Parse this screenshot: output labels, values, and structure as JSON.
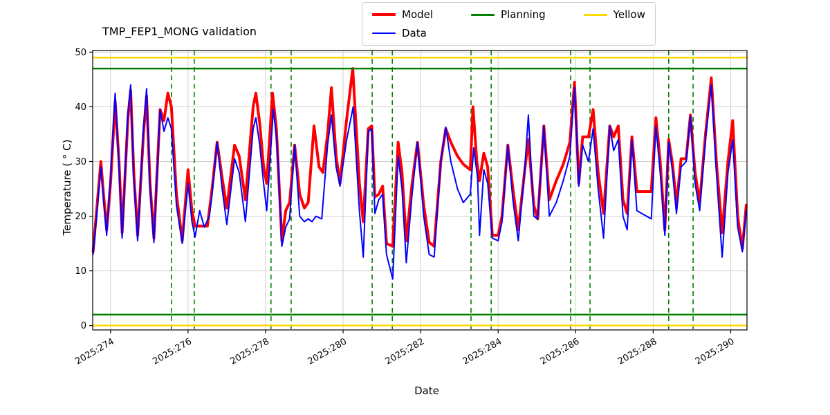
{
  "figure": {
    "title": "TMP_FEP1_MONG validation",
    "xlabel": "Date",
    "ylabel": "Temperature ( ° C)"
  },
  "legend": {
    "items": [
      {
        "label": "Model",
        "color": "#ff0000",
        "lw": 4
      },
      {
        "label": "Planning",
        "color": "#008000",
        "lw": 3
      },
      {
        "label": "Yellow",
        "color": "#ffd700",
        "lw": 3
      },
      {
        "label": "Data",
        "color": "#0000ff",
        "lw": 2
      }
    ]
  },
  "chart_data": {
    "type": "line",
    "title": "TMP_FEP1_MONG validation",
    "xlabel": "Date",
    "ylabel": "Temperature ( ° C)",
    "xlim": [
      273.54,
      290.42
    ],
    "ylim": [
      -0.8,
      50.3
    ],
    "xticks": [
      274,
      276,
      278,
      280,
      282,
      284,
      286,
      288,
      290
    ],
    "xtick_labels": [
      "2025:274",
      "2025:276",
      "2025:278",
      "2025:280",
      "2025:282",
      "2025:284",
      "2025:286",
      "2025:288",
      "2025:290"
    ],
    "yticks": [
      0,
      10,
      20,
      30,
      40,
      50
    ],
    "grid": true,
    "grid_color": "#d0d0d0",
    "legend_position": "upper center, outside axes",
    "hlines": [
      {
        "name": "yellow-upper",
        "y": 49,
        "color": "#ffd700",
        "width": 2.5
      },
      {
        "name": "planning-upper",
        "y": 47,
        "color": "#008000",
        "width": 2.5
      },
      {
        "name": "planning-lower",
        "y": 2,
        "color": "#008000",
        "width": 2.5
      },
      {
        "name": "yellow-lower",
        "y": 0,
        "color": "#ffd700",
        "width": 2.5
      }
    ],
    "vlines": {
      "color": "#008000",
      "style": "dashed",
      "x": [
        275.57,
        276.16,
        278.14,
        278.66,
        280.75,
        281.27,
        283.3,
        283.82,
        285.87,
        286.37,
        288.4,
        289.03
      ]
    },
    "series": [
      {
        "name": "Model",
        "color": "#ff0000",
        "width": 4,
        "points": [
          [
            273.55,
            13.5
          ],
          [
            273.63,
            20
          ],
          [
            273.75,
            30
          ],
          [
            273.82,
            24
          ],
          [
            273.9,
            17.5
          ],
          [
            274.0,
            26
          ],
          [
            274.12,
            41
          ],
          [
            274.22,
            30
          ],
          [
            274.3,
            17
          ],
          [
            274.45,
            38
          ],
          [
            274.52,
            43
          ],
          [
            274.6,
            28
          ],
          [
            274.7,
            16.5
          ],
          [
            274.85,
            35
          ],
          [
            274.93,
            42
          ],
          [
            275.02,
            26
          ],
          [
            275.12,
            16
          ],
          [
            275.28,
            39.5
          ],
          [
            275.38,
            37.5
          ],
          [
            275.48,
            42.5
          ],
          [
            275.57,
            40
          ],
          [
            275.7,
            24
          ],
          [
            275.85,
            15.5
          ],
          [
            276.0,
            28.5
          ],
          [
            276.1,
            21
          ],
          [
            276.18,
            18.2
          ],
          [
            276.5,
            18.2
          ],
          [
            276.62,
            25
          ],
          [
            276.75,
            33.5
          ],
          [
            276.88,
            27
          ],
          [
            277.0,
            21.5
          ],
          [
            277.2,
            33
          ],
          [
            277.32,
            31
          ],
          [
            277.48,
            23
          ],
          [
            277.68,
            40
          ],
          [
            277.75,
            42.5
          ],
          [
            277.85,
            37
          ],
          [
            277.95,
            29
          ],
          [
            278.03,
            26
          ],
          [
            278.18,
            42.5
          ],
          [
            278.28,
            36
          ],
          [
            278.42,
            15.5
          ],
          [
            278.52,
            21
          ],
          [
            278.62,
            22.5
          ],
          [
            278.75,
            33
          ],
          [
            278.88,
            24
          ],
          [
            279.0,
            21.5
          ],
          [
            279.1,
            22.5
          ],
          [
            279.25,
            36.5
          ],
          [
            279.38,
            29
          ],
          [
            279.48,
            28
          ],
          [
            279.6,
            35
          ],
          [
            279.7,
            43.5
          ],
          [
            279.82,
            31
          ],
          [
            279.92,
            26
          ],
          [
            280.08,
            37
          ],
          [
            280.25,
            47
          ],
          [
            280.42,
            26
          ],
          [
            280.52,
            19
          ],
          [
            280.65,
            36
          ],
          [
            280.74,
            36.5
          ],
          [
            280.82,
            23.5
          ],
          [
            280.92,
            24
          ],
          [
            281.02,
            25.5
          ],
          [
            281.12,
            15
          ],
          [
            281.28,
            14.5
          ],
          [
            281.42,
            33.5
          ],
          [
            281.52,
            28
          ],
          [
            281.63,
            15.5
          ],
          [
            281.78,
            26
          ],
          [
            281.92,
            33.5
          ],
          [
            282.08,
            22
          ],
          [
            282.22,
            15.2
          ],
          [
            282.35,
            14.5
          ],
          [
            282.52,
            30
          ],
          [
            282.65,
            36
          ],
          [
            282.78,
            33.5
          ],
          [
            282.95,
            31
          ],
          [
            283.1,
            29.5
          ],
          [
            283.28,
            28.5
          ],
          [
            283.35,
            40
          ],
          [
            283.45,
            30
          ],
          [
            283.52,
            26.5
          ],
          [
            283.63,
            31.5
          ],
          [
            283.73,
            29
          ],
          [
            283.85,
            16.5
          ],
          [
            284.0,
            16.5
          ],
          [
            284.1,
            20
          ],
          [
            284.25,
            33
          ],
          [
            284.38,
            25
          ],
          [
            284.52,
            17.5
          ],
          [
            284.68,
            28
          ],
          [
            284.78,
            34
          ],
          [
            284.92,
            22
          ],
          [
            285.02,
            19.5
          ],
          [
            285.18,
            36.5
          ],
          [
            285.32,
            23
          ],
          [
            285.5,
            26.5
          ],
          [
            285.68,
            29.5
          ],
          [
            285.85,
            33.5
          ],
          [
            285.97,
            44.5
          ],
          [
            286.08,
            26
          ],
          [
            286.18,
            34.5
          ],
          [
            286.33,
            34.5
          ],
          [
            286.45,
            39.5
          ],
          [
            286.58,
            28
          ],
          [
            286.72,
            20.5
          ],
          [
            286.88,
            36.5
          ],
          [
            286.98,
            34.5
          ],
          [
            287.1,
            36.5
          ],
          [
            287.22,
            23
          ],
          [
            287.33,
            20.5
          ],
          [
            287.45,
            34.5
          ],
          [
            287.58,
            24.5
          ],
          [
            287.95,
            24.5
          ],
          [
            288.07,
            38
          ],
          [
            288.18,
            30
          ],
          [
            288.3,
            17.5
          ],
          [
            288.4,
            34
          ],
          [
            288.5,
            29.5
          ],
          [
            288.6,
            22
          ],
          [
            288.72,
            30.5
          ],
          [
            288.85,
            30.5
          ],
          [
            288.96,
            38.5
          ],
          [
            289.08,
            28
          ],
          [
            289.2,
            22.5
          ],
          [
            289.35,
            35
          ],
          [
            289.5,
            45.3
          ],
          [
            289.63,
            30
          ],
          [
            289.78,
            17
          ],
          [
            289.93,
            30
          ],
          [
            290.05,
            37.5
          ],
          [
            290.18,
            20
          ],
          [
            290.3,
            14
          ],
          [
            290.4,
            22
          ]
        ]
      },
      {
        "name": "Data",
        "color": "#0000ff",
        "width": 2,
        "points": [
          [
            273.55,
            13
          ],
          [
            273.63,
            19
          ],
          [
            273.75,
            29
          ],
          [
            273.82,
            23
          ],
          [
            273.9,
            16.5
          ],
          [
            274.0,
            27
          ],
          [
            274.12,
            42.5
          ],
          [
            274.22,
            29
          ],
          [
            274.3,
            16
          ],
          [
            274.45,
            39
          ],
          [
            274.52,
            44
          ],
          [
            274.6,
            27
          ],
          [
            274.7,
            15.5
          ],
          [
            274.85,
            36
          ],
          [
            274.93,
            43.3
          ],
          [
            275.02,
            25
          ],
          [
            275.12,
            15.2
          ],
          [
            275.28,
            39.5
          ],
          [
            275.38,
            35.5
          ],
          [
            275.48,
            38
          ],
          [
            275.57,
            36
          ],
          [
            275.7,
            22
          ],
          [
            275.85,
            15
          ],
          [
            276.0,
            26
          ],
          [
            276.1,
            19
          ],
          [
            276.18,
            16.2
          ],
          [
            276.3,
            21
          ],
          [
            276.42,
            18
          ],
          [
            276.55,
            20
          ],
          [
            276.62,
            24
          ],
          [
            276.75,
            33.5
          ],
          [
            276.88,
            25
          ],
          [
            277.0,
            18.5
          ],
          [
            277.2,
            30.5
          ],
          [
            277.32,
            28
          ],
          [
            277.48,
            19
          ],
          [
            277.68,
            36
          ],
          [
            277.75,
            38
          ],
          [
            277.85,
            33
          ],
          [
            277.95,
            26
          ],
          [
            278.03,
            21
          ],
          [
            278.2,
            39.5
          ],
          [
            278.3,
            33
          ],
          [
            278.42,
            14.5
          ],
          [
            278.52,
            18
          ],
          [
            278.62,
            19.5
          ],
          [
            278.75,
            33
          ],
          [
            278.88,
            20
          ],
          [
            279.0,
            19
          ],
          [
            279.1,
            19.5
          ],
          [
            279.2,
            19
          ],
          [
            279.3,
            20
          ],
          [
            279.45,
            19.5
          ],
          [
            279.6,
            33
          ],
          [
            279.7,
            38.5
          ],
          [
            279.82,
            29
          ],
          [
            279.92,
            25.5
          ],
          [
            280.08,
            33.5
          ],
          [
            280.26,
            40
          ],
          [
            280.42,
            21
          ],
          [
            280.52,
            12.5
          ],
          [
            280.65,
            35.5
          ],
          [
            280.74,
            36
          ],
          [
            280.82,
            20.5
          ],
          [
            280.92,
            23
          ],
          [
            281.02,
            24
          ],
          [
            281.12,
            13
          ],
          [
            281.28,
            8.5
          ],
          [
            281.42,
            31
          ],
          [
            281.52,
            25
          ],
          [
            281.63,
            11.5
          ],
          [
            281.78,
            24
          ],
          [
            281.92,
            33.5
          ],
          [
            282.08,
            20
          ],
          [
            282.22,
            13
          ],
          [
            282.35,
            12.5
          ],
          [
            282.52,
            30
          ],
          [
            282.65,
            36.3
          ],
          [
            282.78,
            30
          ],
          [
            282.95,
            25
          ],
          [
            283.1,
            22.5
          ],
          [
            283.28,
            24
          ],
          [
            283.37,
            32.5
          ],
          [
            283.47,
            27
          ],
          [
            283.52,
            16.5
          ],
          [
            283.63,
            28.5
          ],
          [
            283.73,
            26
          ],
          [
            283.85,
            16
          ],
          [
            284.0,
            15.5
          ],
          [
            284.1,
            19
          ],
          [
            284.25,
            33
          ],
          [
            284.38,
            23
          ],
          [
            284.52,
            15.5
          ],
          [
            284.68,
            28
          ],
          [
            284.78,
            38.5
          ],
          [
            284.92,
            20
          ],
          [
            285.02,
            19.5
          ],
          [
            285.18,
            36.5
          ],
          [
            285.32,
            20
          ],
          [
            285.5,
            22.5
          ],
          [
            285.68,
            26.5
          ],
          [
            285.85,
            31
          ],
          [
            285.97,
            43.5
          ],
          [
            286.08,
            25.5
          ],
          [
            286.18,
            33
          ],
          [
            286.33,
            30
          ],
          [
            286.45,
            36
          ],
          [
            286.58,
            25
          ],
          [
            286.72,
            16
          ],
          [
            286.88,
            36.5
          ],
          [
            286.98,
            32
          ],
          [
            287.1,
            34
          ],
          [
            287.22,
            20
          ],
          [
            287.33,
            17.5
          ],
          [
            287.45,
            34
          ],
          [
            287.58,
            21
          ],
          [
            287.95,
            19.5
          ],
          [
            288.07,
            36.5
          ],
          [
            288.18,
            28
          ],
          [
            288.3,
            16.5
          ],
          [
            288.4,
            33.5
          ],
          [
            288.5,
            28
          ],
          [
            288.6,
            20.5
          ],
          [
            288.72,
            29
          ],
          [
            288.85,
            30
          ],
          [
            288.96,
            38.3
          ],
          [
            289.08,
            26
          ],
          [
            289.2,
            21
          ],
          [
            289.35,
            34
          ],
          [
            289.5,
            44
          ],
          [
            289.63,
            28
          ],
          [
            289.78,
            12.5
          ],
          [
            289.93,
            28
          ],
          [
            290.05,
            34
          ],
          [
            290.18,
            18
          ],
          [
            290.3,
            13.5
          ],
          [
            290.4,
            21
          ]
        ]
      }
    ]
  }
}
